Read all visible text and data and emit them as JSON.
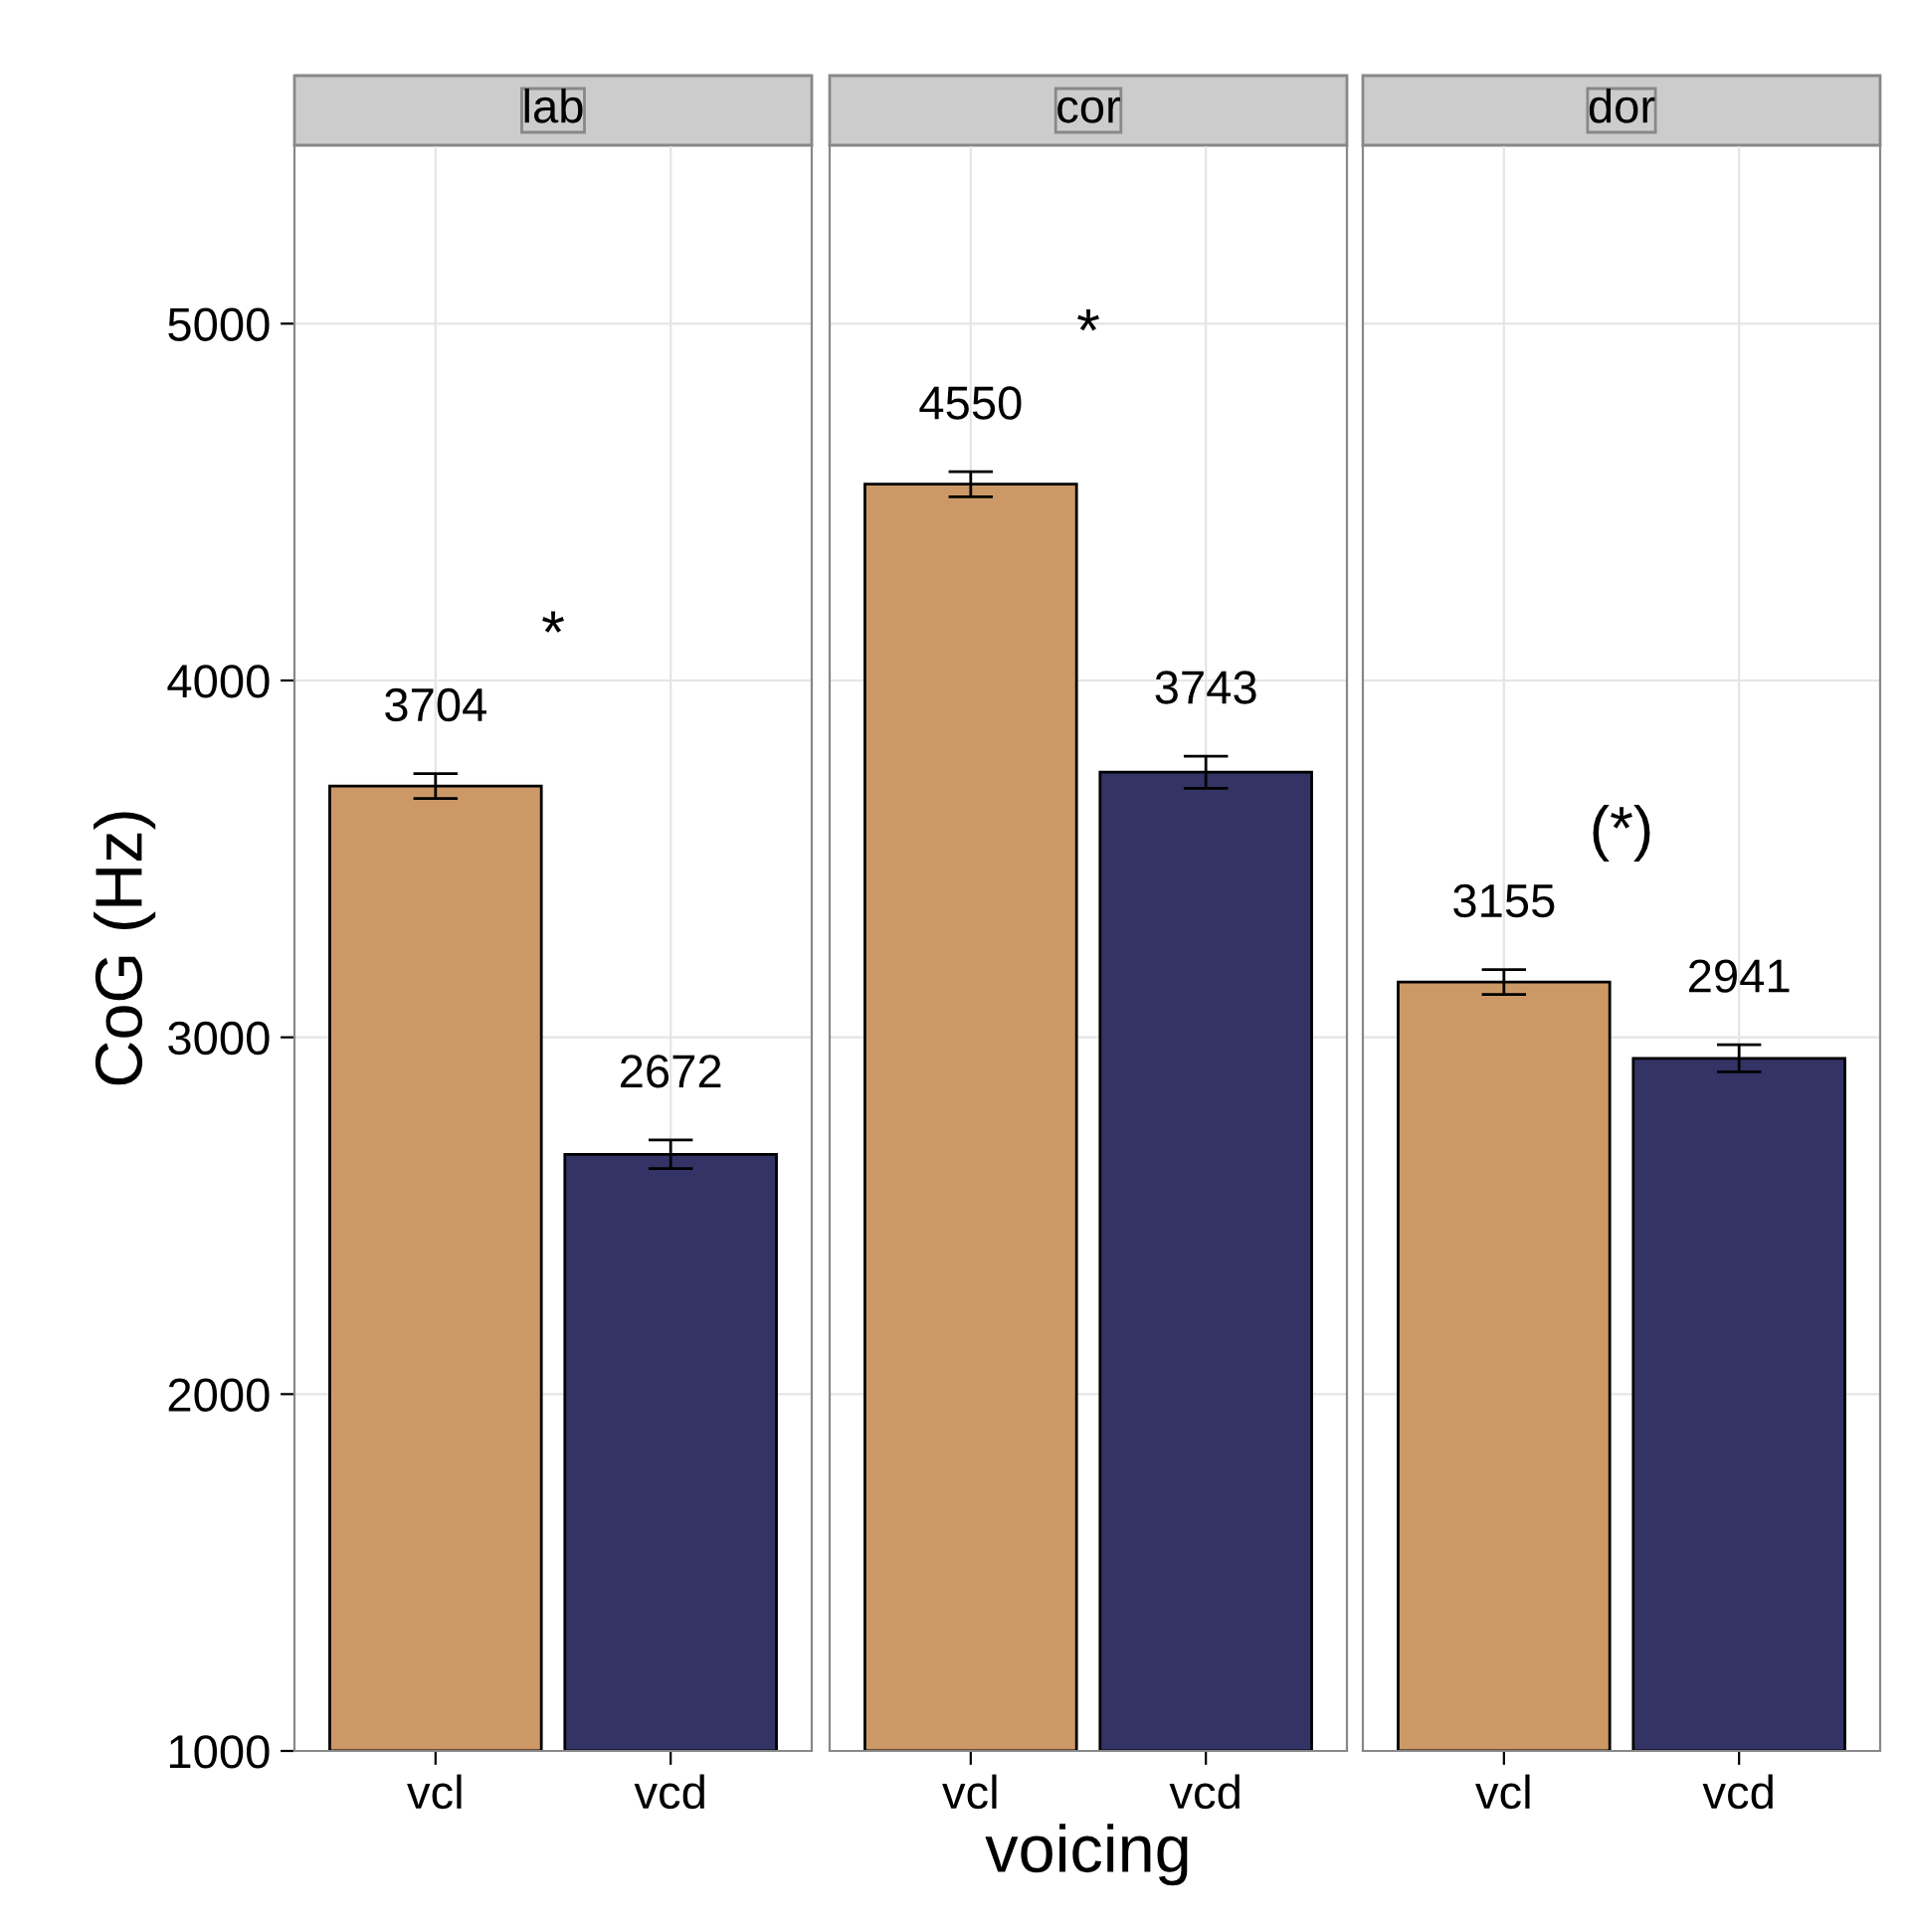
{
  "chart_data": [
    {
      "type": "bar",
      "title": "lab",
      "ylabel": "CoG (Hz)",
      "categories": [
        "vcl",
        "vcd"
      ],
      "values": [
        3704,
        2672
      ],
      "colors": [
        "#cc9966",
        "#333366"
      ],
      "errors": [
        35,
        40
      ],
      "data_labels": true,
      "annotations": [
        "*"
      ],
      "ylim": [
        1000,
        5500
      ],
      "yticks": [
        1000,
        2000,
        3000,
        4000,
        5000
      ],
      "grid": true
    },
    {
      "type": "bar",
      "title": "cor",
      "xlabel": "voicing",
      "categories": [
        "vcl",
        "vcd"
      ],
      "values": [
        4550,
        3743
      ],
      "colors": [
        "#cc9966",
        "#333366"
      ],
      "errors": [
        35,
        45
      ],
      "data_labels": true,
      "annotations": [
        "*"
      ],
      "ylim": [
        1000,
        5500
      ],
      "yticks": [
        1000,
        2000,
        3000,
        4000,
        5000
      ],
      "grid": true,
      "tick_labels": "x"
    },
    {
      "type": "bar",
      "title": "dor",
      "categories": [
        "vcl",
        "vcd"
      ],
      "values": [
        3155,
        2941
      ],
      "colors": [
        "#cc9966",
        "#333366"
      ],
      "errors": [
        35,
        38
      ],
      "data_labels": true,
      "annotations": [
        "(*)"
      ],
      "ylim": [
        1000,
        5500
      ],
      "yticks": [
        1000,
        2000,
        3000,
        4000,
        5000
      ],
      "grid": true,
      "tick_labels": "x"
    }
  ]
}
